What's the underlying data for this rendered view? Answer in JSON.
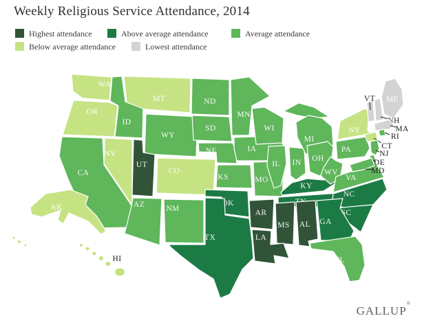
{
  "title": "Weekly Religious Service Attendance, 2014",
  "brand": {
    "logo_text": "GALLUP",
    "registered_mark": "®"
  },
  "legend": {
    "items": [
      {
        "key": "highest",
        "label": "Highest attendance",
        "color": "#315438"
      },
      {
        "key": "above_average",
        "label": "Above average attendance",
        "color": "#1C7A45"
      },
      {
        "key": "average",
        "label": "Average attendance",
        "color": "#5FB65B"
      },
      {
        "key": "below_average",
        "label": "Below average attendance",
        "color": "#C6E383"
      },
      {
        "key": "lowest",
        "label": "Lowest attendance",
        "color": "#D3D3D3"
      }
    ]
  },
  "chart_data": {
    "type": "heatmap",
    "subtype": "us-state-choropleth",
    "title": "Weekly Religious Service Attendance, 2014",
    "categories": [
      "Highest attendance",
      "Above average attendance",
      "Average attendance",
      "Below average attendance",
      "Lowest attendance"
    ],
    "legend_position": "top",
    "states": {
      "UT": "highest",
      "AR": "highest",
      "LA": "highest",
      "MS": "highest",
      "AL": "highest",
      "TX": "above_average",
      "OK": "above_average",
      "KY": "above_average",
      "TN": "above_average",
      "NC": "above_average",
      "SC": "above_average",
      "GA": "above_average",
      "ID": "average",
      "WY": "average",
      "CA": "average",
      "AZ": "average",
      "NM": "average",
      "ND": "average",
      "SD": "average",
      "NE": "average",
      "KS": "average",
      "MN": "average",
      "IA": "average",
      "MO": "average",
      "WI": "average",
      "MI": "average",
      "IL": "average",
      "IN": "average",
      "OH": "average",
      "PA": "average",
      "WV": "average",
      "VA": "average",
      "MD": "average",
      "DE": "average",
      "NJ": "average",
      "RI": "average",
      "FL": "average",
      "WA": "below_average",
      "OR": "below_average",
      "MT": "below_average",
      "NV": "below_average",
      "CO": "below_average",
      "NY": "below_average",
      "CT": "below_average",
      "AK": "below_average",
      "HI": "below_average",
      "ME": "lowest",
      "VT": "lowest",
      "NH": "lowest",
      "MA": "lowest"
    }
  }
}
